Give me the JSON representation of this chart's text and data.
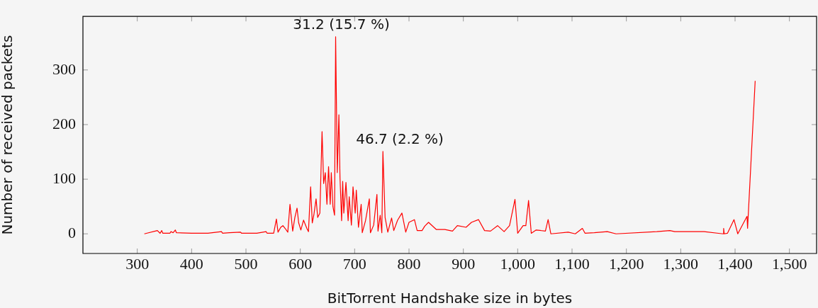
{
  "chart_data": {
    "type": "line",
    "xlabel": "BitTorrent Handshake size in bytes",
    "ylabel": "Number of received packets",
    "xlim": [
      200,
      1550
    ],
    "ylim": [
      -36,
      398
    ],
    "xticks": [
      300,
      400,
      500,
      600,
      700,
      800,
      900,
      {
        "value": 1000,
        "label": "1,000"
      },
      {
        "value": 1100,
        "label": "1,100"
      },
      {
        "value": 1200,
        "label": "1,200"
      },
      {
        "value": 1300,
        "label": "1,300"
      },
      {
        "value": 1400,
        "label": "1,400"
      },
      {
        "value": 1500,
        "label": "1,500"
      }
    ],
    "yticks": [
      0,
      100,
      200,
      300
    ],
    "marker": "none",
    "line_style": "solid",
    "legend": false,
    "annotations": [
      {
        "text": "31.2 (15.7 %)",
        "x": 665,
        "y": 361
      },
      {
        "text": "46.7 (2.2 %)",
        "x": 752,
        "y": 151
      }
    ],
    "series": [
      {
        "color": "#ff0000",
        "x": [
          313,
          337,
          342,
          345,
          347,
          360,
          362,
          366,
          370,
          372,
          400,
          430,
          455,
          457,
          470,
          490,
          492,
          520,
          537,
          539,
          551,
          556,
          559,
          564,
          568,
          572,
          577,
          581,
          586,
          590,
          594,
          597,
          601,
          606,
          612,
          615,
          619,
          622,
          625,
          629,
          632,
          636,
          640,
          643,
          646,
          649,
          652,
          655,
          657,
          660,
          663,
          665,
          668,
          671,
          673,
          676,
          678,
          680,
          684,
          688,
          690,
          694,
          697,
          701,
          703,
          707,
          712,
          714,
          720,
          727,
          729,
          735,
          741,
          743,
          747,
          750,
          752,
          756,
          761,
          768,
          772,
          779,
          787,
          794,
          800,
          810,
          815,
          824,
          829,
          836,
          850,
          866,
          880,
          889,
          905,
          915,
          928,
          939,
          950,
          963,
          975,
          985,
          995,
          1000,
          1010,
          1015,
          1020,
          1025,
          1034,
          1051,
          1056,
          1061,
          1093,
          1106,
          1119,
          1124,
          1141,
          1165,
          1181,
          1256,
          1280,
          1289,
          1343,
          1378,
          1379,
          1380,
          1386,
          1398,
          1405,
          1422,
          1423,
          1437
        ],
        "values": [
          0,
          6,
          1,
          6,
          1,
          1,
          4,
          2,
          7,
          2,
          1,
          1,
          4,
          1,
          2,
          3,
          1,
          1,
          4,
          1,
          1,
          27,
          3,
          12,
          15,
          10,
          3,
          54,
          5,
          30,
          47,
          20,
          7,
          25,
          10,
          4,
          86,
          20,
          35,
          64,
          30,
          38,
          187,
          92,
          112,
          54,
          123,
          54,
          112,
          50,
          34,
          361,
          112,
          218,
          104,
          24,
          96,
          38,
          94,
          24,
          68,
          16,
          86,
          38,
          80,
          12,
          54,
          2,
          24,
          64,
          2,
          16,
          72,
          5,
          34,
          2,
          151,
          30,
          3,
          29,
          6,
          25,
          38,
          3,
          21,
          26,
          6,
          6,
          14,
          21,
          8,
          8,
          5,
          15,
          12,
          21,
          26,
          6,
          5,
          15,
          4,
          15,
          63,
          1,
          15,
          15,
          61,
          1,
          7,
          5,
          26,
          0,
          3,
          0,
          10,
          1,
          2,
          4,
          0,
          4,
          6,
          4,
          4,
          0,
          10,
          0,
          1,
          26,
          0,
          32,
          10,
          280
        ]
      }
    ]
  }
}
